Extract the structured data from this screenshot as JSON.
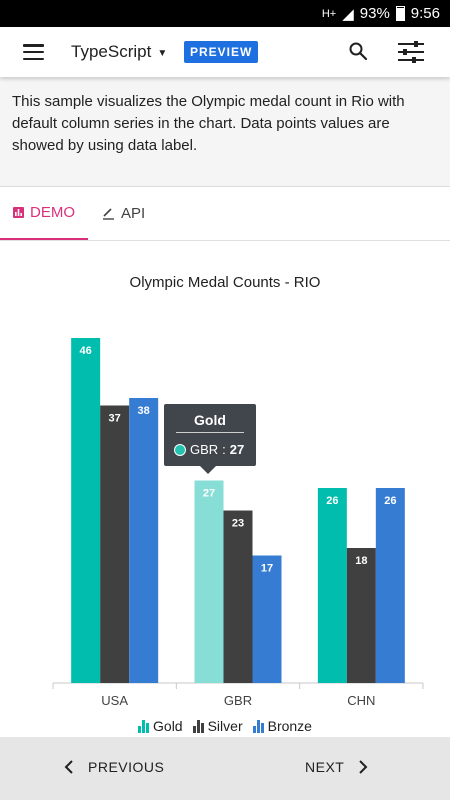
{
  "status_bar": {
    "network": "H+",
    "battery": "93%",
    "time": "9:56"
  },
  "app_bar": {
    "language": "TypeScript",
    "badge": "PREVIEW"
  },
  "description": "This sample visualizes the Olympic medal count in Rio with default column series in the chart. Data points values are showed by using data label.",
  "tabs": [
    {
      "label": "DEMO",
      "active": true
    },
    {
      "label": "API",
      "active": false
    }
  ],
  "tooltip": {
    "title": "Gold",
    "category": "GBR",
    "separator": " : ",
    "value": "27"
  },
  "footer": {
    "previous": "PREVIOUS",
    "next": "NEXT"
  },
  "colors": {
    "accent": "#d9307c",
    "badge": "#1e6fe0",
    "gold": "#00bdae",
    "gold_highlight": "#86ded6",
    "silver": "#404041",
    "bronze": "#357cd2"
  },
  "chart_data": {
    "type": "bar",
    "title": "Olympic Medal Counts - RIO",
    "categories": [
      "USA",
      "GBR",
      "CHN"
    ],
    "series": [
      {
        "name": "Gold",
        "values": [
          46,
          27,
          26
        ]
      },
      {
        "name": "Silver",
        "values": [
          37,
          23,
          18
        ]
      },
      {
        "name": "Bronze",
        "values": [
          38,
          17,
          26
        ]
      }
    ],
    "ylim": [
      0,
      50
    ],
    "grid": false,
    "data_labels": true,
    "legend": "bottom",
    "highlighted_point": {
      "series": "Gold",
      "category": "GBR"
    }
  }
}
